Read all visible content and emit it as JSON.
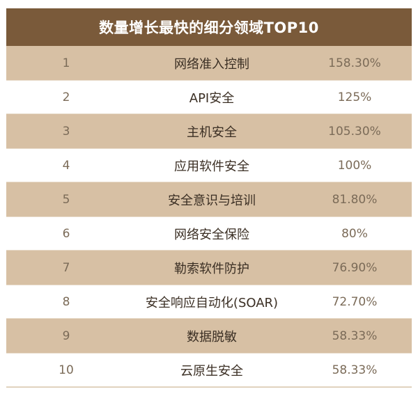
{
  "table": {
    "title": "数量增长最快的细分领域TOP10",
    "rows": [
      {
        "rank": "1",
        "name": "网络准入控制",
        "pct": "158.30%"
      },
      {
        "rank": "2",
        "name": "API安全",
        "pct": "125%"
      },
      {
        "rank": "3",
        "name": "主机安全",
        "pct": "105.30%"
      },
      {
        "rank": "4",
        "name": "应用软件安全",
        "pct": "100%"
      },
      {
        "rank": "5",
        "name": "安全意识与培训",
        "pct": "81.80%"
      },
      {
        "rank": "6",
        "name": "网络安全保险",
        "pct": "80%"
      },
      {
        "rank": "7",
        "name": "勒索软件防护",
        "pct": "76.90%"
      },
      {
        "rank": "8",
        "name": "安全响应自动化(SOAR)",
        "pct": "72.70%"
      },
      {
        "rank": "9",
        "name": "数据脱敏",
        "pct": "58.33%"
      },
      {
        "rank": "10",
        "name": "云原生安全",
        "pct": "58.33%"
      }
    ]
  },
  "colors": {
    "header_bg": "#7a5a3a",
    "odd_row_bg": "#d7c0a4",
    "even_row_bg": "#ffffff"
  }
}
